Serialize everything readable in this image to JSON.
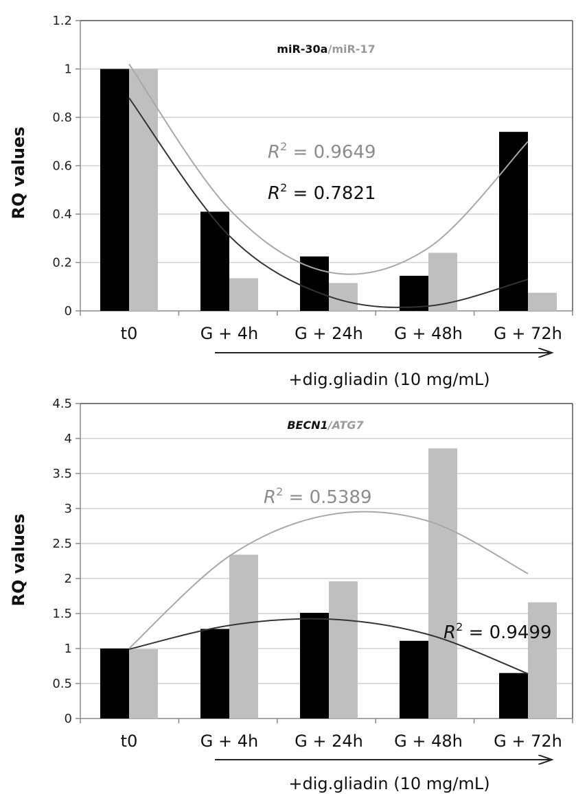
{
  "colors": {
    "series_a": "#000000",
    "series_b": "#bfbfbf",
    "r2_gray": "#8c8c8c",
    "grid": "#d0d0d0"
  },
  "chart_data": [
    {
      "type": "bar",
      "title_a": "miR-30a",
      "title_sep": "/",
      "title_b": "miR-17",
      "title_italic": false,
      "ylabel": "RQ values",
      "ylim": [
        0,
        1.2
      ],
      "yticks": [
        0,
        0.2,
        0.4,
        0.6,
        0.8,
        1,
        1.2
      ],
      "ytick_labels": [
        "0",
        "0.2",
        "0.4",
        "0.6",
        "0.8",
        "1",
        "1.2"
      ],
      "categories": [
        "t0",
        "G + 4h",
        "G + 24h",
        "G + 48h",
        "G + 72h"
      ],
      "series": [
        {
          "values": [
            1.0,
            0.41,
            0.225,
            0.145,
            0.74
          ],
          "trend": [
            0.88,
            0.31,
            0.06,
            0.02,
            0.13
          ]
        },
        {
          "values": [
            1.0,
            0.135,
            0.115,
            0.24,
            0.075
          ],
          "trend": [
            1.02,
            0.42,
            0.16,
            0.26,
            0.7
          ]
        }
      ],
      "r2_a_prefix": "R",
      "r2_a_sup": "2",
      "r2_a_value": " = 0.7821",
      "r2_b_prefix": "R",
      "r2_b_sup": "2",
      "r2_b_value": " = 0.9649",
      "annotation": "+dig.gliadin (10 mg/mL)",
      "grid": true
    },
    {
      "type": "bar",
      "title_a": "BECN1",
      "title_sep": "/",
      "title_b": "ATG7",
      "title_italic": true,
      "ylabel": "RQ values",
      "ylim": [
        0,
        4.5
      ],
      "yticks": [
        0,
        0.5,
        1,
        1.5,
        2,
        2.5,
        3,
        3.5,
        4,
        4.5
      ],
      "ytick_labels": [
        "0",
        "0.5",
        "1",
        "1.5",
        "2",
        "2.5",
        "3",
        "3.5",
        "4",
        "4.5"
      ],
      "categories": [
        "t0",
        "G + 4h",
        "G + 24h",
        "G + 48h",
        "G + 72h"
      ],
      "series": [
        {
          "values": [
            1.0,
            1.28,
            1.51,
            1.11,
            0.65
          ],
          "trend": [
            0.99,
            1.33,
            1.42,
            1.2,
            0.64
          ]
        },
        {
          "values": [
            0.99,
            2.34,
            1.96,
            3.86,
            1.66
          ],
          "trend": [
            1.0,
            2.32,
            2.91,
            2.82,
            2.07
          ]
        }
      ],
      "r2_a_prefix": "R",
      "r2_a_sup": "2",
      "r2_a_value": " = 0.9499",
      "r2_b_prefix": "R",
      "r2_b_sup": "2",
      "r2_b_value": " = 0.5389",
      "annotation": "+dig.gliadin (10 mg/mL)",
      "grid": true
    }
  ]
}
